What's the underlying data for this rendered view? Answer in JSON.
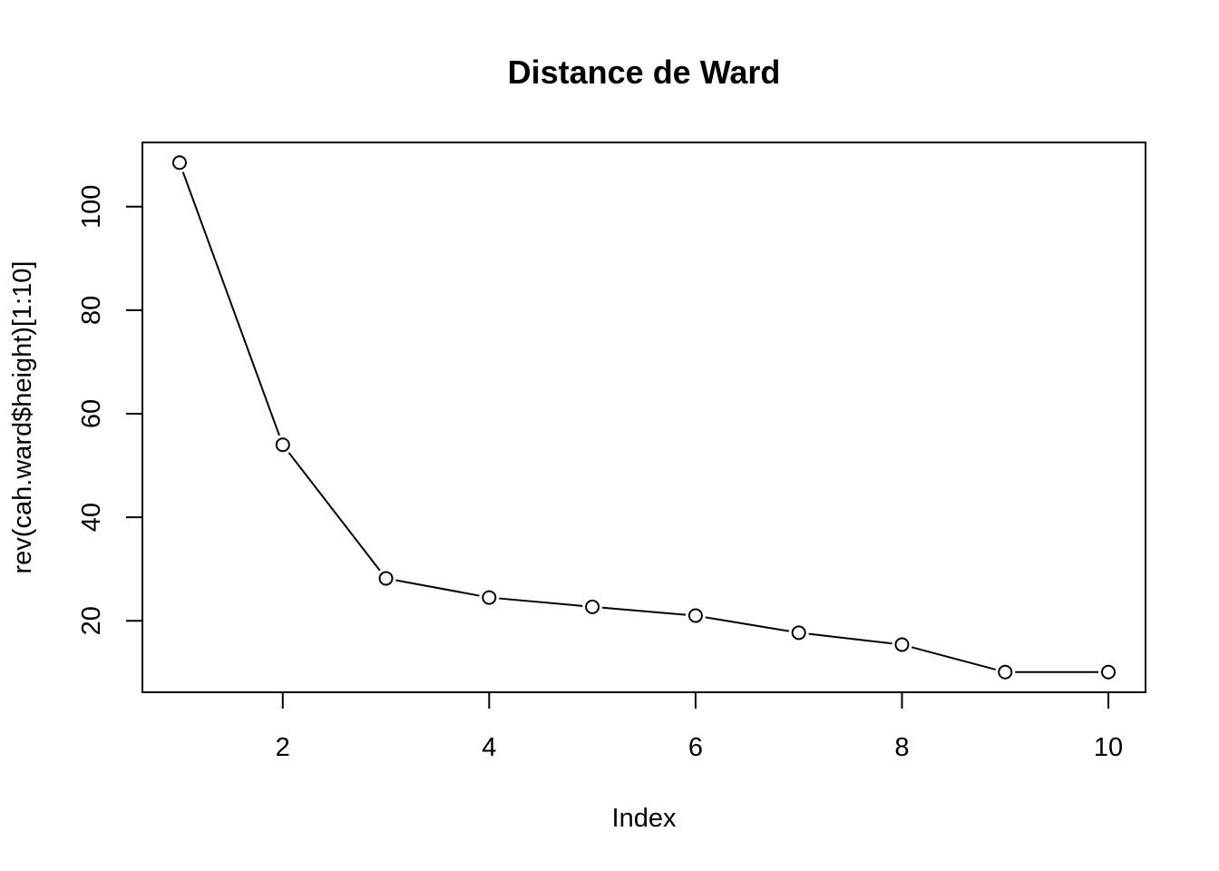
{
  "chart_data": {
    "type": "line",
    "title": "Distance de Ward",
    "xlabel": "Index",
    "ylabel": "rev(cah.ward$height)[1:10]",
    "x": [
      1,
      2,
      3,
      4,
      5,
      6,
      7,
      8,
      9,
      10
    ],
    "series": [
      {
        "values": [
          108.5,
          54.0,
          28.2,
          24.5,
          22.7,
          21.0,
          17.7,
          15.4,
          10.1,
          10.1
        ]
      }
    ],
    "xlim": [
      0.64,
      10.36
    ],
    "ylim": [
      6.2,
      112.4
    ],
    "xticks": [
      2,
      4,
      6,
      8,
      10
    ],
    "yticks": [
      20,
      40,
      60,
      80,
      100
    ],
    "grid": false,
    "legend": "none",
    "marker": "open-circle",
    "line_style": "broken-line-between-points"
  }
}
